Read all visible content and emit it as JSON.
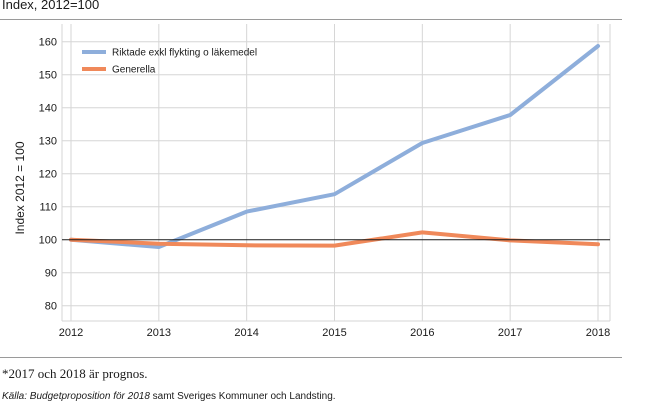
{
  "header": {
    "title": "Index, 2012=100"
  },
  "footer": {
    "footnote": "*2017 och 2018 är prognos.",
    "source_prefix": "Källa:",
    "source_italic": "Budgetproposition för 2018",
    "source_rest": " samt Sveriges Kommuner och Landsting."
  },
  "chart_data": {
    "type": "line",
    "x": [
      2012,
      2013,
      2014,
      2015,
      2016,
      2017,
      2018
    ],
    "categories": [
      "2012",
      "2013",
      "2014",
      "2015",
      "2016",
      "2017",
      "2018"
    ],
    "ylabel": "Index 2012 = 100",
    "xlabel": "",
    "ylim": [
      75,
      165
    ],
    "yticks": [
      80,
      90,
      100,
      110,
      120,
      130,
      140,
      150,
      160
    ],
    "reference_line": 100,
    "legend_position": "top-left",
    "series": [
      {
        "name": "Riktade exkl flykting o läkemedel",
        "color": "#8eaedb",
        "values": [
          100,
          97.8,
          108.5,
          113.8,
          129.3,
          137.8,
          158.7
        ]
      },
      {
        "name": "Generella",
        "color": "#f0895a",
        "values": [
          100,
          98.8,
          98.3,
          98.2,
          102.2,
          99.8,
          98.6
        ]
      }
    ]
  },
  "colors": {
    "grid": "#d6d6d6",
    "reference": "#1a1a1a",
    "rule": "#9a9a9a"
  }
}
